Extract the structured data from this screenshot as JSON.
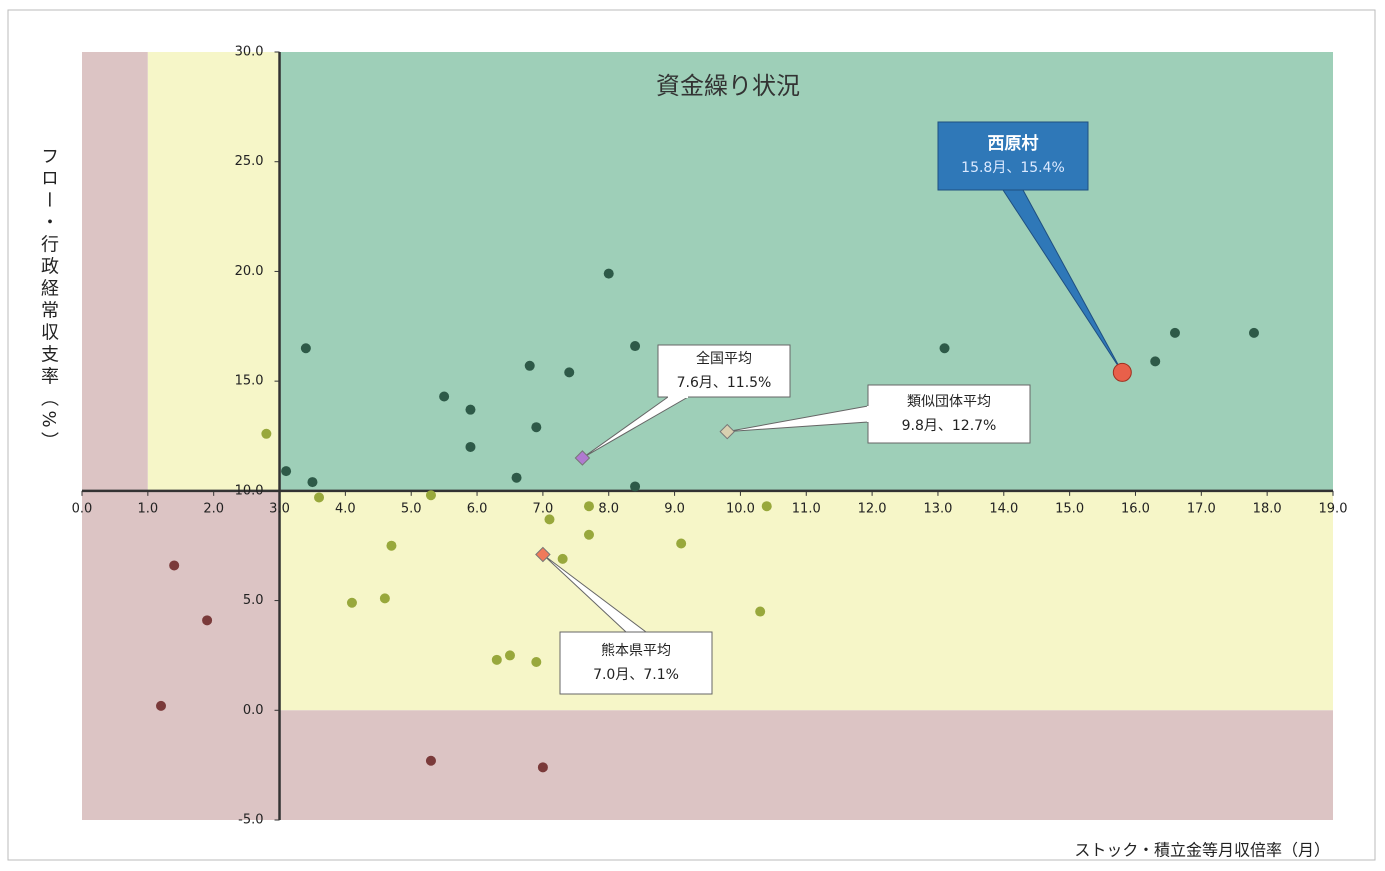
{
  "chart_data": {
    "type": "scatter",
    "title": "資金繰り状況",
    "xlabel": "ストック・積立金等月収倍率（月）",
    "ylabel": "フロー・行政経常収支率（%）",
    "xlim": [
      0,
      19
    ],
    "ylim": [
      -5,
      30
    ],
    "xticks": [
      {
        "value": 0,
        "label": "0.0"
      },
      {
        "value": 1,
        "label": "1.0"
      },
      {
        "value": 2,
        "label": "2.0"
      },
      {
        "value": 3,
        "label": "3.0"
      },
      {
        "value": 4,
        "label": "4.0"
      },
      {
        "value": 5,
        "label": "5.0"
      },
      {
        "value": 6,
        "label": "6.0"
      },
      {
        "value": 7,
        "label": "7.0"
      },
      {
        "value": 8,
        "label": "8.0"
      },
      {
        "value": 9,
        "label": "9.0"
      },
      {
        "value": 10,
        "label": "10.0"
      },
      {
        "value": 11,
        "label": "11.0"
      },
      {
        "value": 12,
        "label": "12.0"
      },
      {
        "value": 13,
        "label": "13.0"
      },
      {
        "value": 14,
        "label": "14.0"
      },
      {
        "value": 15,
        "label": "15.0"
      },
      {
        "value": 16,
        "label": "16.0"
      },
      {
        "value": 17,
        "label": "17.0"
      },
      {
        "value": 18,
        "label": "18.0"
      },
      {
        "value": 19,
        "label": "19.0"
      }
    ],
    "yticks": [
      {
        "value": -5,
        "label": "-5.0"
      },
      {
        "value": 0,
        "label": "0.0"
      },
      {
        "value": 5,
        "label": "5.0"
      },
      {
        "value": 10,
        "label": "10.0"
      },
      {
        "value": 15,
        "label": "15.0"
      },
      {
        "value": 20,
        "label": "20.0"
      },
      {
        "value": 25,
        "label": "25.0"
      },
      {
        "value": 30,
        "label": "30.0"
      }
    ],
    "series": [
      {
        "color": "#2e5a48",
        "x": [
          3.4,
          3.1,
          3.5,
          5.5,
          5.9,
          5.9,
          6.8,
          6.9,
          7.4,
          6.6,
          8.0,
          8.4,
          8.4,
          13.1,
          16.3,
          16.6,
          17.8
        ],
        "values": [
          16.5,
          10.9,
          10.4,
          14.3,
          13.7,
          12.0,
          15.7,
          12.9,
          15.4,
          10.6,
          19.9,
          16.6,
          10.2,
          16.5,
          15.9,
          17.2,
          17.2
        ]
      },
      {
        "color": "#98a83c",
        "x": [
          2.8,
          3.6,
          5.3,
          4.7,
          4.1,
          4.6,
          7.1,
          7.7,
          7.7,
          7.3,
          9.1,
          10.4,
          10.3,
          6.3,
          6.5,
          6.9
        ],
        "values": [
          12.6,
          9.7,
          9.8,
          7.5,
          4.9,
          5.1,
          8.7,
          9.3,
          8.0,
          6.9,
          7.6,
          9.3,
          4.5,
          2.3,
          2.5,
          2.2
        ]
      },
      {
        "color": "#7a3a3a",
        "x": [
          1.4,
          1.9,
          1.2,
          5.3,
          7.0
        ],
        "values": [
          6.6,
          4.1,
          0.2,
          -2.3,
          -2.6
        ]
      }
    ],
    "annotations": [
      {
        "label": "西原村",
        "value_label": "15.8月、15.4%",
        "x": 15.8,
        "y": 15.4,
        "color": "#e8604a"
      },
      {
        "label": "全国平均",
        "value_label": "7.6月、11.5%",
        "x": 7.6,
        "y": 11.5,
        "color": "#b07ad0"
      },
      {
        "label": "類似団体平均",
        "value_label": "9.8月、12.7%",
        "x": 9.8,
        "y": 12.7,
        "color": "#d8d0b0"
      },
      {
        "label": "熊本県平均",
        "value_label": "7.0月、7.1%",
        "x": 7.0,
        "y": 7.1,
        "color": "#f07a5a"
      }
    ]
  }
}
